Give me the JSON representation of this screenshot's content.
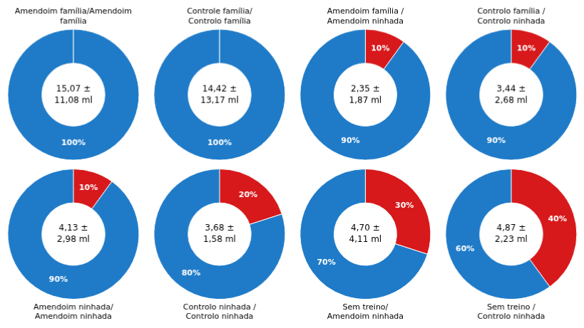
{
  "chart_data": [
    {
      "type": "doughnut",
      "title": "Amendoim família/Amendoim\nfamília",
      "annotations": [
        "15,07 ±\n11,08 ml"
      ],
      "values": [
        100
      ],
      "value_labels": [
        "100%"
      ],
      "colors": [
        "#1F7BC8"
      ],
      "data_labels": true
    },
    {
      "type": "doughnut",
      "title": "Controle família/\nControlo família",
      "annotations": [
        "14,42 ±\n13,17 ml"
      ],
      "values": [
        100
      ],
      "value_labels": [
        "100%"
      ],
      "colors": [
        "#1F7BC8"
      ],
      "data_labels": true
    },
    {
      "type": "doughnut",
      "title": "Amendoim família /\nAmendoim ninhada",
      "annotations": [
        "2,35 ±\n1,87 ml"
      ],
      "values": [
        10,
        90
      ],
      "value_labels": [
        "10%",
        "90%"
      ],
      "colors": [
        "#D7191C",
        "#1F7BC8"
      ],
      "data_labels": true
    },
    {
      "type": "doughnut",
      "title": "Controlo família /\nControlo ninhada",
      "annotations": [
        "3,44 ±\n2,68 ml"
      ],
      "values": [
        10,
        90
      ],
      "value_labels": [
        "10%",
        "90%"
      ],
      "colors": [
        "#D7191C",
        "#1F7BC8"
      ],
      "data_labels": true
    },
    {
      "type": "doughnut",
      "title": "Amendoim ninhada/\nAmendoim ninhada",
      "annotations": [
        "4,13 ±\n2,98 ml"
      ],
      "values": [
        10,
        90
      ],
      "value_labels": [
        "10%",
        "90%"
      ],
      "colors": [
        "#D7191C",
        "#1F7BC8"
      ],
      "data_labels": true
    },
    {
      "type": "doughnut",
      "title": "Controlo ninhada /\nControlo ninhada",
      "annotations": [
        "3,68 ±\n1,58 ml"
      ],
      "values": [
        20,
        80
      ],
      "value_labels": [
        "20%",
        "80%"
      ],
      "colors": [
        "#D7191C",
        "#1F7BC8"
      ],
      "data_labels": true
    },
    {
      "type": "doughnut",
      "title": "Sem treino/\nAmendoim ninhada",
      "annotations": [
        "4,70 ±\n4,11 ml"
      ],
      "values": [
        30,
        70
      ],
      "value_labels": [
        "30%",
        "70%"
      ],
      "colors": [
        "#D7191C",
        "#1F7BC8"
      ],
      "data_labels": true
    },
    {
      "type": "doughnut",
      "title": "Sem treino /\nControlo ninhada",
      "annotations": [
        "4,87 ±\n2,23 ml"
      ],
      "values": [
        40,
        60
      ],
      "value_labels": [
        "40%",
        "60%"
      ],
      "colors": [
        "#D7191C",
        "#1F7BC8"
      ],
      "data_labels": true
    }
  ]
}
